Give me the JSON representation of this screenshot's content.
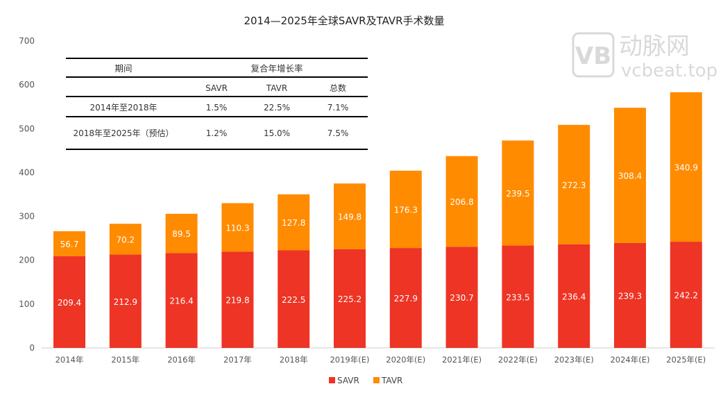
{
  "chart_data": {
    "type": "bar",
    "stacked": true,
    "title": "2014—2025年全球SAVR及TAVR手术数量",
    "categories": [
      "2014年",
      "2015年",
      "2016年",
      "2017年",
      "2018年",
      "2019年(E)",
      "2020年(E)",
      "2021年(E)",
      "2022年(E)",
      "2023年(E)",
      "2024年(E)",
      "2025年(E)"
    ],
    "series": [
      {
        "name": "SAVR",
        "color": "#EE3424",
        "values": [
          209.4,
          212.9,
          216.4,
          219.8,
          222.5,
          225.2,
          227.9,
          230.7,
          233.5,
          236.4,
          239.3,
          242.2
        ]
      },
      {
        "name": "TAVR",
        "color": "#FF8B00",
        "values": [
          56.7,
          70.2,
          89.5,
          110.3,
          127.8,
          149.8,
          176.3,
          206.8,
          239.5,
          272.3,
          308.4,
          340.9
        ]
      }
    ],
    "ylim": [
      0,
      700
    ],
    "yticks": [
      0,
      100,
      200,
      300,
      400,
      500,
      600,
      700
    ],
    "legend": "bottom",
    "grid": false,
    "table": {
      "header1": [
        "期间",
        "复合年增长率"
      ],
      "header2": [
        "",
        "SAVR",
        "TAVR",
        "总数"
      ],
      "rows": [
        [
          "2014年至2018年",
          "1.5%",
          "22.5%",
          "7.1%"
        ],
        [
          "2018年至2025年（预估）",
          "1.2%",
          "15.0%",
          "7.5%"
        ]
      ]
    },
    "watermark": [
      "动脉网",
      "vcbeat.top"
    ]
  }
}
